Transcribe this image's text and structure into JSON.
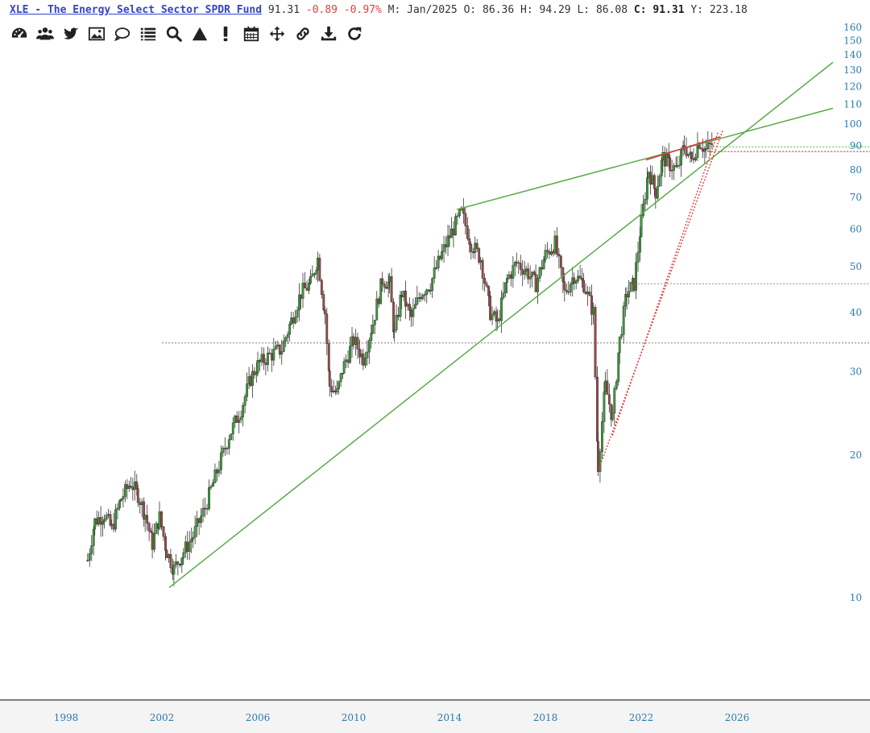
{
  "header": {
    "ticker": "XLE - The Energy Select Sector SPDR Fund",
    "last": "91.31",
    "change": "-0.89",
    "change_pct": "-0.97%",
    "period": "M: Jan/2025",
    "open_label": "O:",
    "open": "86.36",
    "high_label": "H:",
    "high": "94.29",
    "low_label": "L:",
    "low": "86.08",
    "close_label": "C:",
    "close": "91.31",
    "yield_label": "Y:",
    "yield": "223.18"
  },
  "toolbar": [
    {
      "name": "dashboard-icon"
    },
    {
      "name": "users-icon"
    },
    {
      "name": "twitter-icon"
    },
    {
      "name": "image-icon"
    },
    {
      "name": "comment-icon"
    },
    {
      "name": "list-icon"
    },
    {
      "name": "search-icon"
    },
    {
      "name": "triangle-icon"
    },
    {
      "name": "exclamation-icon"
    },
    {
      "name": "calendar-icon"
    },
    {
      "name": "move-icon"
    },
    {
      "name": "link-icon"
    },
    {
      "name": "download-icon"
    },
    {
      "name": "refresh-icon"
    }
  ],
  "colors": {
    "trendline": "#5aaa4a",
    "resistance": "#e03030",
    "dotted_red": "#e04040",
    "dotted_gray": "#999999",
    "dotted_green": "#66cc66",
    "axis_text": "#2a7ab0",
    "candle_up": "#3a9a3a",
    "candle_down": "#9a4a4a"
  },
  "chart_data": {
    "type": "candlestick",
    "scale": "log",
    "ylim": [
      9,
      165
    ],
    "xlim": [
      1997.0,
      2030.0
    ],
    "yticks": [
      10,
      20,
      30,
      40,
      50,
      60,
      70,
      80,
      90,
      100,
      110,
      120,
      130,
      140,
      150,
      160
    ],
    "xticks": [
      "1998",
      "2002",
      "2006",
      "2010",
      "2014",
      "2018",
      "2022",
      "2026"
    ],
    "price_path": [
      [
        1998.9,
        12.0
      ],
      [
        1999.2,
        14.5
      ],
      [
        1999.6,
        15.0
      ],
      [
        1999.9,
        14.0
      ],
      [
        2000.3,
        16.2
      ],
      [
        2000.7,
        17.5
      ],
      [
        2001.0,
        16.5
      ],
      [
        2001.3,
        15.0
      ],
      [
        2001.6,
        13.0
      ],
      [
        2001.9,
        14.8
      ],
      [
        2002.2,
        12.5
      ],
      [
        2002.5,
        11.5
      ],
      [
        2002.9,
        12.5
      ],
      [
        2003.3,
        13.5
      ],
      [
        2003.8,
        15.5
      ],
      [
        2004.3,
        18.5
      ],
      [
        2004.8,
        22.0
      ],
      [
        2005.3,
        25.0
      ],
      [
        2005.7,
        29.0
      ],
      [
        2006.0,
        31.0
      ],
      [
        2006.5,
        32.5
      ],
      [
        2007.0,
        33.5
      ],
      [
        2007.4,
        38.5
      ],
      [
        2007.8,
        44.0
      ],
      [
        2008.2,
        46.0
      ],
      [
        2008.5,
        52.0
      ],
      [
        2008.8,
        40.0
      ],
      [
        2009.0,
        28.0
      ],
      [
        2009.3,
        27.0
      ],
      [
        2009.6,
        31.0
      ],
      [
        2010.0,
        35.0
      ],
      [
        2010.4,
        32.0
      ],
      [
        2010.8,
        38.0
      ],
      [
        2011.2,
        47.0
      ],
      [
        2011.5,
        46.0
      ],
      [
        2011.7,
        36.0
      ],
      [
        2012.0,
        44.0
      ],
      [
        2012.4,
        39.0
      ],
      [
        2012.8,
        44.0
      ],
      [
        2013.2,
        46.0
      ],
      [
        2013.6,
        52.0
      ],
      [
        2014.0,
        58.0
      ],
      [
        2014.5,
        65.0
      ],
      [
        2014.9,
        56.0
      ],
      [
        2015.3,
        52.0
      ],
      [
        2015.7,
        40.0
      ],
      [
        2016.0,
        38.0
      ],
      [
        2016.4,
        47.0
      ],
      [
        2016.8,
        51.0
      ],
      [
        2017.2,
        49.0
      ],
      [
        2017.6,
        46.0
      ],
      [
        2018.0,
        53.0
      ],
      [
        2018.4,
        56.0
      ],
      [
        2018.8,
        44.0
      ],
      [
        2019.2,
        48.0
      ],
      [
        2019.6,
        46.0
      ],
      [
        2020.0,
        40.0
      ],
      [
        2020.2,
        19.0
      ],
      [
        2020.5,
        28.0
      ],
      [
        2020.8,
        24.0
      ],
      [
        2021.1,
        35.0
      ],
      [
        2021.4,
        44.0
      ],
      [
        2021.7,
        46.0
      ],
      [
        2022.0,
        62.0
      ],
      [
        2022.3,
        80.0
      ],
      [
        2022.6,
        72.0
      ],
      [
        2022.9,
        85.0
      ],
      [
        2023.2,
        82.0
      ],
      [
        2023.5,
        80.0
      ],
      [
        2023.8,
        90.0
      ],
      [
        2024.1,
        84.0
      ],
      [
        2024.4,
        92.0
      ],
      [
        2024.7,
        88.0
      ],
      [
        2025.0,
        91.31
      ]
    ],
    "trendlines": [
      {
        "kind": "support",
        "from": [
          2002.3,
          10.5
        ],
        "to": [
          2030.0,
          135.0
        ]
      },
      {
        "kind": "resistance",
        "from": [
          2014.3,
          66.0
        ],
        "to": [
          2030.0,
          108.0
        ]
      }
    ],
    "resistance_segments": [
      {
        "from": [
          2022.2,
          84.0
        ],
        "to": [
          2025.3,
          94.0
        ]
      }
    ],
    "dotted_red_rays": [
      {
        "from": [
          2020.2,
          18.5
        ],
        "to": [
          2025.4,
          97.0
        ]
      },
      {
        "from": [
          2020.8,
          22.0
        ],
        "to": [
          2025.2,
          96.0
        ]
      }
    ],
    "horizontal_levels": [
      {
        "y": 34.5,
        "style": "gray-dotted",
        "from_x": 2002.0
      },
      {
        "y": 46.0,
        "style": "gray-dotted",
        "from_x": 2021.6
      },
      {
        "y": 87.5,
        "style": "red-dotted",
        "from_x": 2024.8
      },
      {
        "y": 89.5,
        "style": "green-dotted",
        "from_x": 2025.0
      }
    ]
  }
}
